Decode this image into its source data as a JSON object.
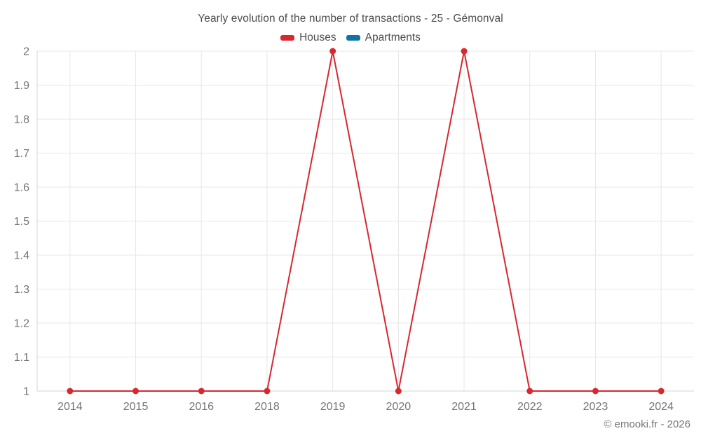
{
  "title": "Yearly evolution of the number of transactions - 25 - Gémonval",
  "watermark": "© emooki.fr - 2026",
  "legend": {
    "items": [
      {
        "label": "Houses",
        "color": "#d7282f"
      },
      {
        "label": "Apartments",
        "color": "#1272a3"
      }
    ]
  },
  "colors": {
    "houses": "#d7282f",
    "apartments": "#1272a3",
    "grid": "#e7e7e7",
    "axis": "#d6d6d6",
    "tick_text": "#757575",
    "title_text": "#4d4d4d"
  },
  "chart_data": {
    "type": "line",
    "title": "Yearly evolution of the number of transactions - 25 - Gémonval",
    "categories": [
      "2014",
      "2015",
      "2016",
      "2018",
      "2019",
      "2020",
      "2021",
      "2022",
      "2023",
      "2024"
    ],
    "series": [
      {
        "name": "Houses",
        "color": "#d7282f",
        "values": [
          1,
          1,
          1,
          1,
          2,
          1,
          2,
          1,
          1,
          1
        ]
      },
      {
        "name": "Apartments",
        "color": "#1272a3",
        "values": []
      }
    ],
    "xlabel": "",
    "ylabel": "",
    "ylim": [
      1,
      2
    ],
    "y_ticks": [
      1,
      1.1,
      1.2,
      1.3,
      1.4,
      1.5,
      1.6,
      1.7,
      1.8,
      1.9,
      2
    ],
    "grid": true,
    "legend_position": "top"
  }
}
